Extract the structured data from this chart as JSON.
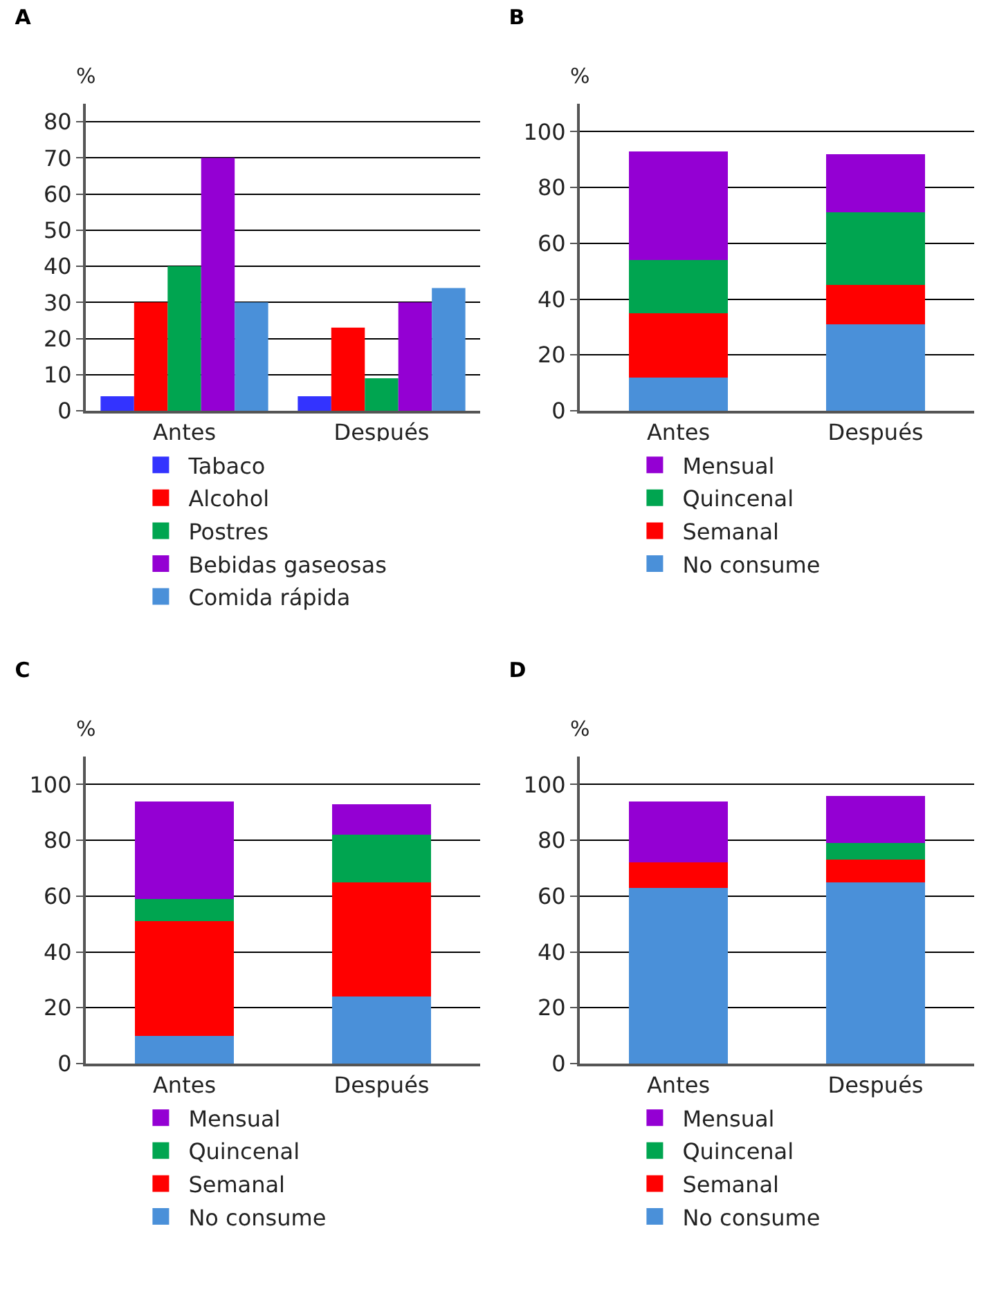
{
  "chart_data": [
    {
      "type": "bar",
      "title": "A",
      "ylabel": "%",
      "categories": [
        "Antes",
        "Después"
      ],
      "ylim": [
        0,
        85
      ],
      "yticks": [
        0,
        10,
        20,
        30,
        40,
        50,
        60,
        70,
        80
      ],
      "grid": "y",
      "legend": "bottom",
      "series": [
        {
          "name": "Tabaco",
          "color": "#3333ff",
          "values": [
            4,
            4
          ]
        },
        {
          "name": "Alcohol",
          "color": "#ff0000",
          "values": [
            30,
            23
          ]
        },
        {
          "name": "Postres",
          "color": "#00a550",
          "values": [
            40,
            9
          ]
        },
        {
          "name": "Bebidas gaseosas",
          "color": "#9400d3",
          "values": [
            70,
            30
          ]
        },
        {
          "name": "Comida rápida",
          "color": "#4a90d9",
          "values": [
            30,
            34
          ]
        }
      ]
    },
    {
      "type": "bar",
      "title": "B",
      "ylabel": "%",
      "categories": [
        "Antes",
        "Después"
      ],
      "ylim": [
        0,
        110
      ],
      "yticks": [
        0,
        20,
        40,
        60,
        80,
        100
      ],
      "grid": "y",
      "legend": "bottom",
      "stacked": true,
      "series": [
        {
          "name": "No consume",
          "color": "#4a90d9",
          "values": [
            12,
            31
          ]
        },
        {
          "name": "Semanal",
          "color": "#ff0000",
          "values": [
            23,
            14
          ]
        },
        {
          "name": "Quincenal",
          "color": "#00a550",
          "values": [
            19,
            26
          ]
        },
        {
          "name": "Mensual",
          "color": "#9400d3",
          "values": [
            39,
            21
          ]
        }
      ]
    },
    {
      "type": "bar",
      "title": "C",
      "ylabel": "%",
      "categories": [
        "Antes",
        "Después"
      ],
      "ylim": [
        0,
        110
      ],
      "yticks": [
        0,
        20,
        40,
        60,
        80,
        100
      ],
      "grid": "y",
      "legend": "bottom",
      "stacked": true,
      "series": [
        {
          "name": "No consume",
          "color": "#4a90d9",
          "values": [
            10,
            24
          ]
        },
        {
          "name": "Semanal",
          "color": "#ff0000",
          "values": [
            41,
            41
          ]
        },
        {
          "name": "Quincenal",
          "color": "#00a550",
          "values": [
            8,
            17
          ]
        },
        {
          "name": "Mensual",
          "color": "#9400d3",
          "values": [
            35,
            11
          ]
        }
      ]
    },
    {
      "type": "bar",
      "title": "D",
      "ylabel": "%",
      "categories": [
        "Antes",
        "Después"
      ],
      "ylim": [
        0,
        110
      ],
      "yticks": [
        0,
        20,
        40,
        60,
        80,
        100
      ],
      "grid": "y",
      "legend": "bottom",
      "stacked": true,
      "series": [
        {
          "name": "No consume",
          "color": "#4a90d9",
          "values": [
            63,
            65
          ]
        },
        {
          "name": "Semanal",
          "color": "#ff0000",
          "values": [
            9,
            8
          ]
        },
        {
          "name": "Quincenal",
          "color": "#00a550",
          "values": [
            0,
            6
          ]
        },
        {
          "name": "Mensual",
          "color": "#9400d3",
          "values": [
            22,
            17
          ]
        }
      ]
    }
  ]
}
